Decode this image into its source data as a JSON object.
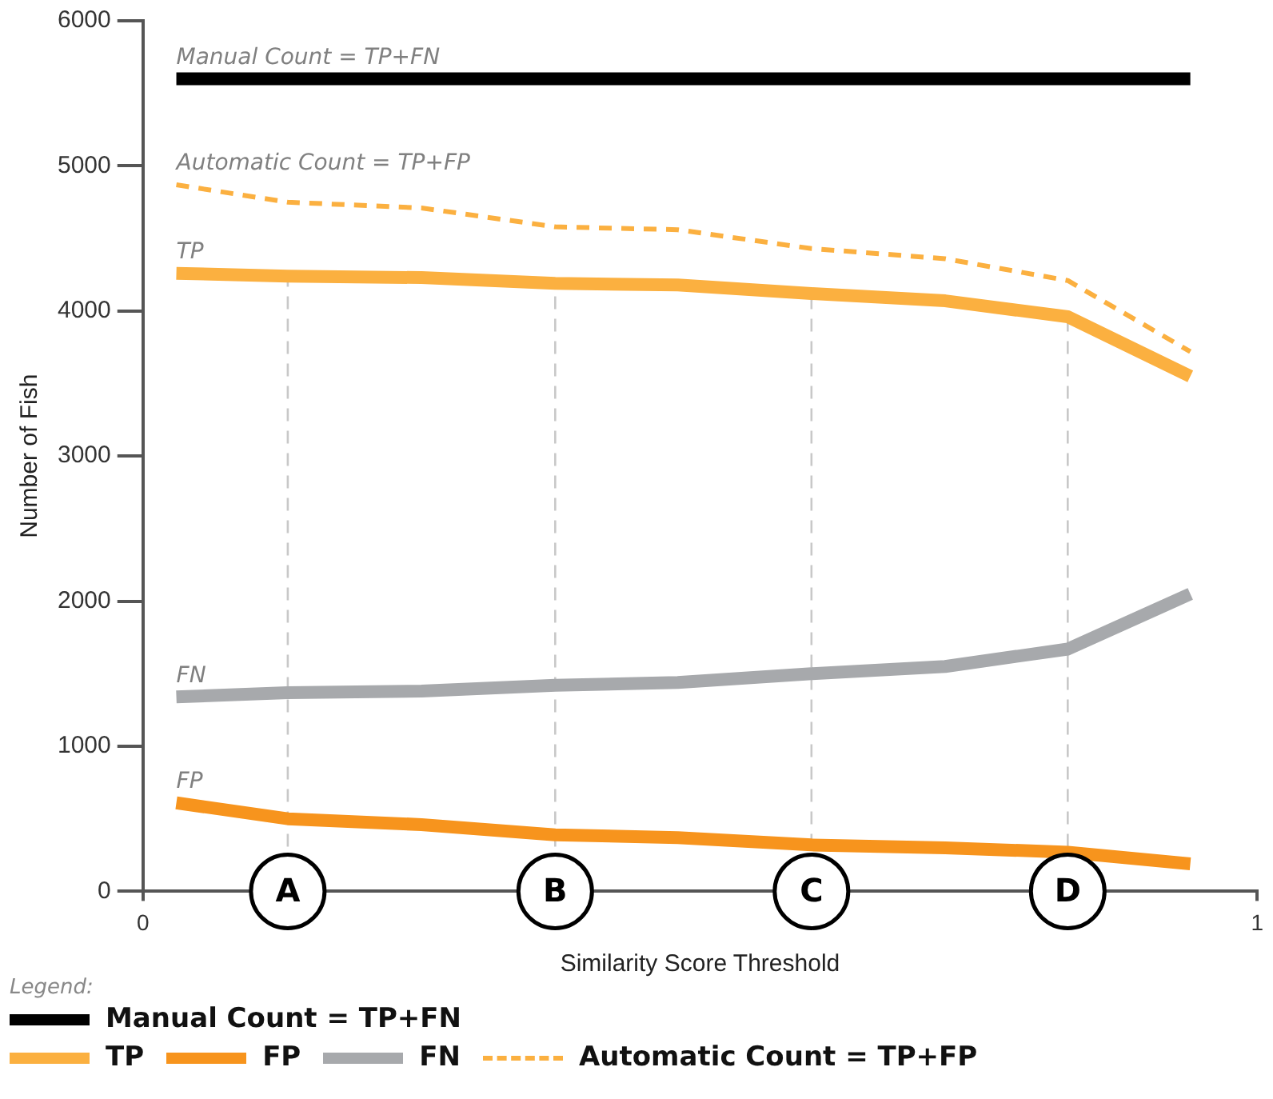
{
  "chart_data": {
    "type": "line",
    "xlabel": "Similarity Score Threshold",
    "ylabel": "Number of Fish",
    "legend_title": "Legend:",
    "legend": "bottom left",
    "xlim": [
      0,
      1
    ],
    "xticks": [
      0,
      1
    ],
    "ylim": [
      0,
      6000
    ],
    "yticks": [
      0,
      1000,
      2000,
      3000,
      4000,
      5000,
      6000
    ],
    "grid": false,
    "marker": "none",
    "series": [
      {
        "name": "Manual Count = TP+FN",
        "color": "#000000",
        "x": [
          0.03,
          0.94
        ],
        "values": [
          5600,
          5600
        ]
      },
      {
        "name": "TP",
        "color": "#fbb040",
        "x": [
          0.03,
          0.13,
          0.25,
          0.37,
          0.48,
          0.6,
          0.72,
          0.83,
          0.94
        ],
        "values": [
          4260,
          4240,
          4230,
          4190,
          4180,
          4120,
          4070,
          3960,
          3550
        ]
      },
      {
        "name": "FP",
        "color": "#f7941d",
        "x": [
          0.03,
          0.13,
          0.25,
          0.37,
          0.48,
          0.6,
          0.72,
          0.83,
          0.94
        ],
        "values": [
          610,
          500,
          460,
          390,
          370,
          320,
          300,
          270,
          190
        ]
      },
      {
        "name": "FN",
        "color": "#a7a9ac",
        "x": [
          0.03,
          0.13,
          0.25,
          0.37,
          0.48,
          0.6,
          0.72,
          0.83,
          0.94
        ],
        "values": [
          1340,
          1370,
          1380,
          1420,
          1440,
          1500,
          1550,
          1670,
          2050
        ]
      },
      {
        "name": "Automatic Count = TP+FP",
        "color": "#fbb040",
        "line_style": "dashed",
        "x": [
          0.03,
          0.13,
          0.25,
          0.37,
          0.48,
          0.6,
          0.72,
          0.83,
          0.94
        ],
        "values": [
          4870,
          4750,
          4710,
          4580,
          4560,
          4430,
          4360,
          4210,
          3720
        ]
      }
    ],
    "ref_lines": [
      {
        "axis": "x",
        "value": 0.13,
        "label": "A"
      },
      {
        "axis": "x",
        "value": 0.37,
        "label": "B"
      },
      {
        "axis": "x",
        "value": 0.6,
        "label": "C"
      },
      {
        "axis": "x",
        "value": 0.83,
        "label": "D"
      }
    ]
  }
}
